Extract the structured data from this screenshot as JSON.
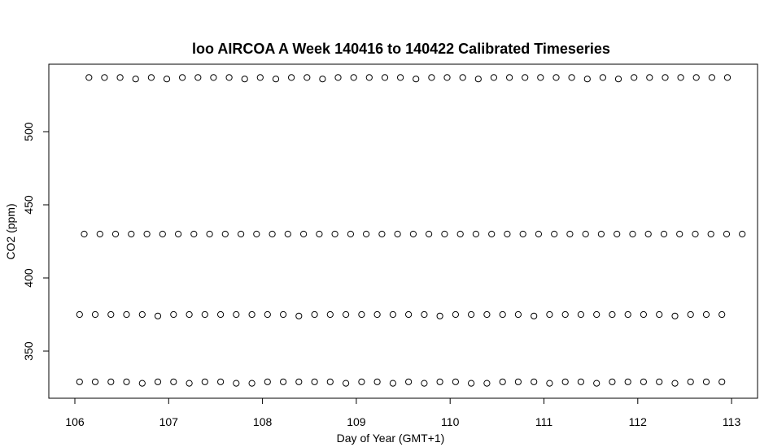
{
  "chart_data": {
    "type": "scatter",
    "title": "loo AIRCOA A  Week 140416 to 140422  Calibrated Timeseries",
    "xlabel": "Day of Year (GMT+1)",
    "ylabel": "CO2 (ppm)",
    "xlim": [
      106.0,
      113.0
    ],
    "ylim": [
      325.0,
      540.0
    ],
    "xticks": [
      106,
      107,
      108,
      109,
      110,
      111,
      112,
      113
    ],
    "yticks": [
      350,
      400,
      450,
      500
    ],
    "grid": false,
    "legend": "none",
    "marker": "open-circle",
    "series": [
      {
        "x_start": 106.15,
        "x_step": 0.166,
        "count": 42,
        "values": [
          537,
          537,
          537,
          536,
          537,
          536,
          537,
          537,
          537,
          537,
          536,
          537,
          536,
          537,
          537,
          536,
          537,
          537,
          537,
          537,
          537,
          536,
          537,
          537,
          537,
          536,
          537,
          537,
          537,
          537,
          537,
          537,
          536,
          537,
          536,
          537,
          537,
          537,
          537,
          537,
          537,
          537
        ]
      },
      {
        "x_start": 106.1,
        "x_step": 0.167,
        "count": 43,
        "values": [
          430,
          430,
          430,
          430,
          430,
          430,
          430,
          430,
          430,
          430,
          430,
          430,
          430,
          430,
          430,
          430,
          430,
          430,
          430,
          430,
          430,
          430,
          430,
          430,
          430,
          430,
          430,
          430,
          430,
          430,
          430,
          430,
          430,
          430,
          430,
          430,
          430,
          430,
          430,
          430,
          430,
          430,
          430
        ]
      },
      {
        "x_start": 106.05,
        "x_step": 0.167,
        "count": 42,
        "values": [
          375,
          375,
          375,
          375,
          375,
          374,
          375,
          375,
          375,
          375,
          375,
          375,
          375,
          375,
          374,
          375,
          375,
          375,
          375,
          375,
          375,
          375,
          375,
          374,
          375,
          375,
          375,
          375,
          375,
          374,
          375,
          375,
          375,
          375,
          375,
          375,
          375,
          375,
          374,
          375,
          375,
          375
        ]
      },
      {
        "x_start": 106.05,
        "x_step": 0.167,
        "count": 42,
        "values": [
          329,
          329,
          329,
          329,
          328,
          329,
          329,
          328,
          329,
          329,
          328,
          328,
          329,
          329,
          329,
          329,
          329,
          328,
          329,
          329,
          328,
          329,
          328,
          329,
          329,
          328,
          328,
          329,
          329,
          329,
          328,
          329,
          329,
          328,
          329,
          329,
          329,
          329,
          328,
          329,
          329,
          329
        ]
      }
    ]
  }
}
